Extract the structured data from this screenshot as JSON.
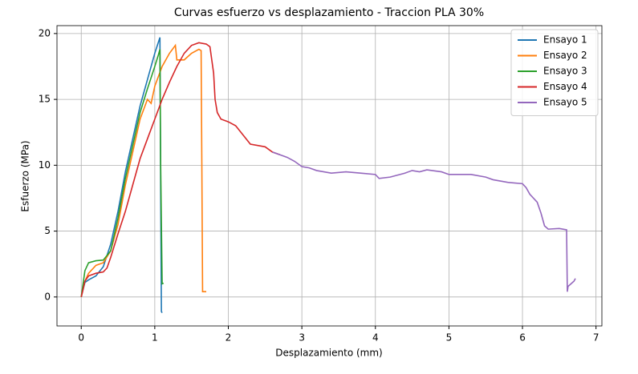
{
  "chart_data": {
    "type": "line",
    "title": "Curvas esfuerzo vs desplazamiento - Traccion PLA 30%",
    "x_label": "Desplazamiento (mm)",
    "y_label": "Esfuerzo (MPa)",
    "xlim": [
      -0.33,
      7.08
    ],
    "ylim": [
      -2.2,
      20.6
    ],
    "xticks": [
      0,
      1,
      2,
      3,
      4,
      5,
      6,
      7
    ],
    "yticks": [
      0,
      5,
      10,
      15,
      20
    ],
    "grid": true,
    "legend": "upper right",
    "series": [
      {
        "name": "Ensayo 1",
        "color": "#1f77b4",
        "x": [
          0,
          0.05,
          0.1,
          0.2,
          0.3,
          0.4,
          0.5,
          0.6,
          0.7,
          0.8,
          0.9,
          1.0,
          1.07,
          1.08,
          1.09,
          1.1
        ],
        "values": [
          0,
          1.1,
          1.3,
          1.6,
          2.3,
          4,
          6.5,
          9.5,
          12,
          14.5,
          16.5,
          18.5,
          19.7,
          8,
          -1.1,
          -1.2
        ]
      },
      {
        "name": "Ensayo 2",
        "color": "#ff7f0e",
        "x": [
          0,
          0.05,
          0.1,
          0.2,
          0.3,
          0.4,
          0.5,
          0.6,
          0.7,
          0.8,
          0.9,
          0.95,
          1.0,
          1.1,
          1.2,
          1.28,
          1.3,
          1.4,
          1.5,
          1.6,
          1.63,
          1.64,
          1.65,
          1.7
        ],
        "values": [
          0,
          1.2,
          1.8,
          2.4,
          2.6,
          3.5,
          5.5,
          8.5,
          11,
          13.5,
          15,
          14.7,
          16,
          17.5,
          18.5,
          19.1,
          18,
          18,
          18.5,
          18.8,
          18.7,
          10,
          0.4,
          0.4
        ]
      },
      {
        "name": "Ensayo 3",
        "color": "#2ca02c",
        "x": [
          0,
          0.05,
          0.1,
          0.2,
          0.3,
          0.4,
          0.5,
          0.6,
          0.7,
          0.8,
          0.9,
          1.0,
          1.05,
          1.07,
          1.08,
          1.1,
          1.12
        ],
        "values": [
          0,
          2,
          2.6,
          2.75,
          2.8,
          3.5,
          6,
          9,
          11.5,
          14,
          15.8,
          17.5,
          18.4,
          18.8,
          10,
          1,
          1.05
        ]
      },
      {
        "name": "Ensayo 4",
        "color": "#d62728",
        "x": [
          0,
          0.05,
          0.1,
          0.2,
          0.3,
          0.35,
          0.4,
          0.5,
          0.6,
          0.7,
          0.8,
          0.9,
          1.0,
          1.1,
          1.2,
          1.3,
          1.4,
          1.5,
          1.6,
          1.7,
          1.75,
          1.8,
          1.82,
          1.85,
          1.9,
          2.0,
          2.1,
          2.2,
          2.3,
          2.5,
          2.6,
          2.7
        ],
        "values": [
          0,
          1.2,
          1.6,
          1.8,
          1.9,
          2.2,
          3,
          4.8,
          6.5,
          8.5,
          10.5,
          12,
          13.5,
          15,
          16.3,
          17.5,
          18.5,
          19.1,
          19.3,
          19.2,
          19,
          17,
          15,
          14,
          13.5,
          13.3,
          13,
          12.3,
          11.6,
          11.4,
          11.0,
          10.8
        ]
      },
      {
        "name": "Ensayo 5",
        "color": "#9467bd",
        "x": [
          2.6,
          2.8,
          2.9,
          3.0,
          3.1,
          3.2,
          3.4,
          3.6,
          3.8,
          4.0,
          4.05,
          4.2,
          4.4,
          4.5,
          4.6,
          4.7,
          4.9,
          5.0,
          5.3,
          5.5,
          5.6,
          5.8,
          6.0,
          6.05,
          6.1,
          6.2,
          6.25,
          6.3,
          6.35,
          6.5,
          6.6,
          6.61,
          6.62,
          6.7,
          6.72
        ],
        "values": [
          11.0,
          10.6,
          10.3,
          9.9,
          9.8,
          9.6,
          9.4,
          9.5,
          9.4,
          9.3,
          9.0,
          9.1,
          9.4,
          9.6,
          9.5,
          9.65,
          9.5,
          9.3,
          9.3,
          9.1,
          8.9,
          8.7,
          8.6,
          8.3,
          7.8,
          7.2,
          6.4,
          5.4,
          5.15,
          5.2,
          5.1,
          0.4,
          0.8,
          1.2,
          1.4
        ]
      }
    ]
  }
}
